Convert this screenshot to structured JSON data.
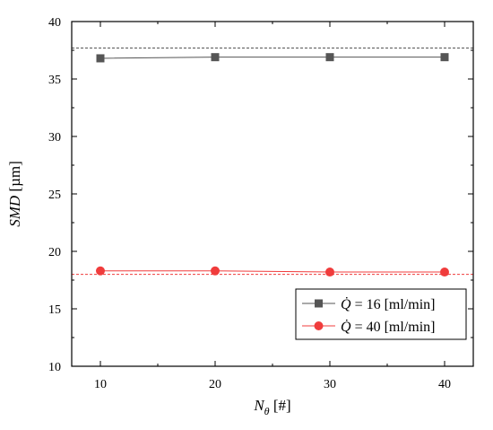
{
  "chart_data": {
    "type": "line",
    "xlabel": {
      "symbol": "N",
      "subscript": "θ",
      "unit": " [#]"
    },
    "ylabel": {
      "symbol": "SMD",
      "unit": " [µm]"
    },
    "xlim": [
      7.5,
      42.5
    ],
    "ylim": [
      10,
      40
    ],
    "x_ticks": [
      "10",
      "20",
      "30",
      "40"
    ],
    "y_ticks": [
      "10",
      "15",
      "20",
      "25",
      "30",
      "35",
      "40"
    ],
    "x": [
      10,
      20,
      30,
      40
    ],
    "series": [
      {
        "name": "Q̇ = 16 [ml/min]",
        "legend_symbol": "Q̇",
        "legend_text": " = 16 [ml/min]",
        "values": [
          36.8,
          36.9,
          36.9,
          36.9
        ],
        "color": "#555555",
        "marker": "square",
        "reference_level": 37.7
      },
      {
        "name": "Q̇ = 40 [ml/min]",
        "legend_symbol": "Q̇",
        "legend_text": " = 40 [ml/min]",
        "values": [
          18.3,
          18.3,
          18.2,
          18.2
        ],
        "color": "#f03c3c",
        "marker": "circle",
        "reference_level": 18.0
      }
    ],
    "grid": false,
    "legend_position": "bottom-right"
  }
}
